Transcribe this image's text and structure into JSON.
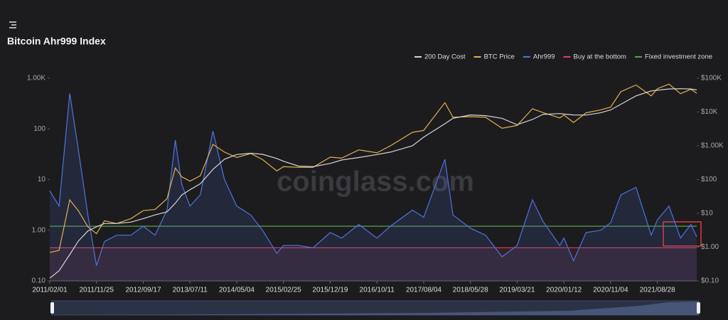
{
  "chart_data": {
    "type": "line",
    "title": "Bitcoin Ahr999 Index",
    "watermark": "coinglass.com",
    "y_log": true,
    "y2_log": true,
    "xlim": [
      "2011/02/01",
      "2022/05/05"
    ],
    "xticks": [
      "2011/02/01",
      "2011/11/25",
      "2012/09/17",
      "2013/07/11",
      "2014/05/04",
      "2015/02/25",
      "2015/12/19",
      "2016/10/11",
      "2017/08/04",
      "2018/05/28",
      "2019/03/21",
      "2020/01/12",
      "2020/11/04",
      "2021/08/28"
    ],
    "ylim": [
      0.1,
      1000
    ],
    "yticks": [
      {
        "value": 1000,
        "label": "1.00K"
      },
      100,
      10,
      {
        "value": 1,
        "label": "1.00"
      },
      {
        "value": 0.1,
        "label": "0.10"
      }
    ],
    "y2lim": [
      0.1,
      100000
    ],
    "y2ticks": [
      {
        "value": 100000,
        "label": "$100K"
      },
      {
        "value": 10000,
        "label": "$10K"
      },
      {
        "value": 1000,
        "label": "$1.00K"
      },
      {
        "value": 100,
        "label": "$100"
      },
      {
        "value": 10,
        "label": "$10"
      },
      {
        "value": 1,
        "label": "$1.00"
      },
      {
        "value": 0.1,
        "label": "$0.10"
      }
    ],
    "x": [
      "2011/02/01",
      "2011/04/01",
      "2011/06/08",
      "2011/08/01",
      "2011/10/01",
      "2011/11/25",
      "2012/01/15",
      "2012/04/01",
      "2012/07/01",
      "2012/09/17",
      "2012/12/01",
      "2013/02/15",
      "2013/04/09",
      "2013/05/20",
      "2013/07/11",
      "2013/09/15",
      "2013/12/04",
      "2014/02/15",
      "2014/05/04",
      "2014/08/01",
      "2014/10/15",
      "2015/01/14",
      "2015/02/25",
      "2015/06/01",
      "2015/09/01",
      "2015/12/19",
      "2016/03/01",
      "2016/06/18",
      "2016/10/11",
      "2017/01/05",
      "2017/05/25",
      "2017/08/04",
      "2017/12/17",
      "2018/02/06",
      "2018/05/28",
      "2018/09/01",
      "2018/12/15",
      "2019/03/21",
      "2019/06/26",
      "2019/09/01",
      "2019/12/17",
      "2020/01/12",
      "2020/03/13",
      "2020/06/01",
      "2020/09/01",
      "2020/11/04",
      "2021/01/08",
      "2021/04/14",
      "2021/07/20",
      "2021/08/28",
      "2021/11/10",
      "2022/01/22",
      "2022/03/29",
      "2022/05/05"
    ],
    "series": [
      {
        "name": "200 Day Cost",
        "color": "#d4d4d4",
        "axis": "y2",
        "values": [
          0.12,
          0.2,
          0.6,
          1.5,
          3,
          4,
          5,
          5,
          5.5,
          7,
          9,
          11,
          20,
          35,
          50,
          75,
          200,
          400,
          550,
          600,
          560,
          420,
          350,
          250,
          240,
          300,
          380,
          450,
          550,
          650,
          1000,
          1800,
          4500,
          6500,
          8200,
          7800,
          6500,
          4200,
          6000,
          8500,
          9000,
          8700,
          8200,
          8100,
          9500,
          11500,
          17000,
          30000,
          42000,
          44000,
          48000,
          49000,
          48000,
          45000
        ]
      },
      {
        "name": "BTC Price",
        "color": "#e3b04b",
        "axis": "y2",
        "values": [
          0.7,
          0.8,
          25,
          12,
          4,
          2.5,
          6,
          5,
          7,
          12,
          13,
          27,
          220,
          120,
          90,
          130,
          1100,
          650,
          450,
          590,
          390,
          180,
          240,
          230,
          230,
          460,
          430,
          760,
          620,
          1000,
          2500,
          2850,
          19000,
          7000,
          7300,
          7000,
          3300,
          4000,
          12500,
          9600,
          6700,
          8100,
          4900,
          9500,
          11500,
          14000,
          40000,
          63000,
          30000,
          49000,
          67000,
          35000,
          47000,
          36000
        ]
      },
      {
        "name": "Ahr999",
        "color": "#4f74dc",
        "values": [
          6,
          3,
          500,
          40,
          2,
          0.2,
          0.6,
          0.8,
          0.8,
          1.2,
          0.8,
          2.5,
          60,
          8,
          3,
          5,
          90,
          10,
          3,
          2,
          1.0,
          0.35,
          0.5,
          0.5,
          0.45,
          0.9,
          0.7,
          1.3,
          0.7,
          1.2,
          2.5,
          1.8,
          25,
          2,
          1.1,
          0.8,
          0.3,
          0.5,
          4,
          1.5,
          0.5,
          0.7,
          0.25,
          0.9,
          1.0,
          1.4,
          5,
          7,
          0.8,
          1.6,
          3,
          0.7,
          1.3,
          0.75
        ]
      },
      {
        "name": "Buy at the bottom",
        "color": "#d8405e",
        "value": 0.45
      },
      {
        "name": "Fixed investment zone",
        "color": "#56a24e",
        "value": 1.2
      }
    ]
  }
}
